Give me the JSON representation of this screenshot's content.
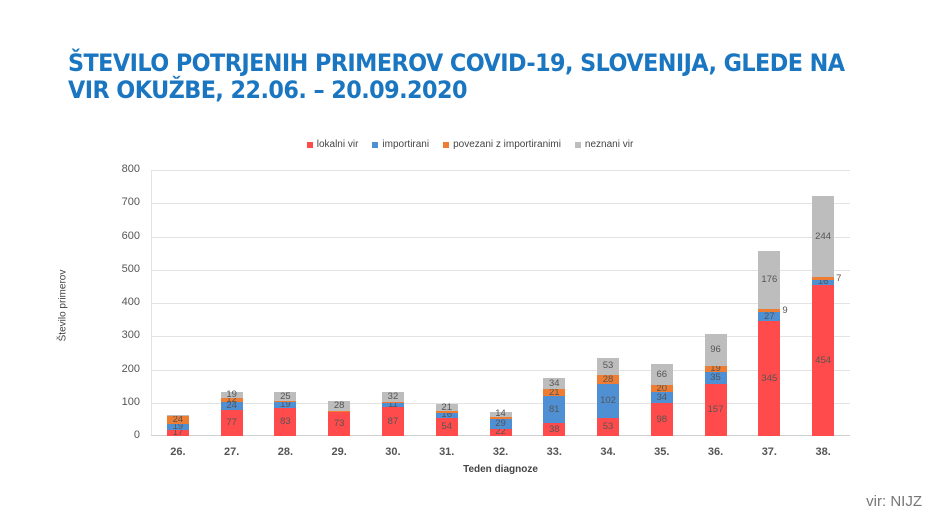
{
  "title": "ŠTEVILO POTRJENIH PRIMEROV COVID-19, SLOVENIJA, GLEDE NA VIR OKUŽBE, 22.06. – 20.09.2020",
  "source": "vir: NIJZ",
  "colors": {
    "lokalni vir": "#ff4b4b",
    "importirani": "#4f8fd4",
    "povezani z importiranimi": "#ee7c32",
    "neznani vir": "#bdbdbd"
  },
  "chart_data": {
    "type": "bar",
    "stacked": true,
    "title": "ŠTEVILO POTRJENIH PRIMEROV COVID-19, SLOVENIJA, GLEDE NA VIR OKUŽBE, 22.06. – 20.09.2020",
    "xlabel": "Teden diagnoze",
    "ylabel": "Število primerov",
    "ylim": [
      0,
      800
    ],
    "yticks": [
      0,
      100,
      200,
      300,
      400,
      500,
      600,
      700,
      800
    ],
    "grid": true,
    "legend_position": "top",
    "categories": [
      "26.",
      "27.",
      "28.",
      "29.",
      "30.",
      "31.",
      "32.",
      "33.",
      "34.",
      "35.",
      "36.",
      "37.",
      "38."
    ],
    "series": [
      {
        "name": "lokalni vir",
        "values": [
          17,
          77,
          83,
          73,
          87,
          54,
          22,
          38,
          53,
          98,
          157,
          345,
          454
        ]
      },
      {
        "name": "importirani",
        "values": [
          19,
          24,
          19,
          2,
          11,
          16,
          29,
          81,
          102,
          34,
          35,
          27,
          16
        ]
      },
      {
        "name": "povezani z importiranimi",
        "values": [
          24,
          12,
          4,
          1,
          3,
          4,
          7,
          21,
          28,
          20,
          19,
          9,
          7
        ]
      },
      {
        "name": "neznani vir",
        "values": [
          4,
          19,
          25,
          28,
          32,
          21,
          14,
          34,
          53,
          66,
          96,
          176,
          244
        ]
      }
    ],
    "labels_shown": [
      [
        true,
        true,
        true,
        true,
        true,
        true,
        true,
        true,
        true,
        true,
        true,
        true,
        true
      ],
      [
        true,
        true,
        true,
        false,
        true,
        true,
        true,
        true,
        true,
        true,
        true,
        true,
        true
      ],
      [
        true,
        true,
        false,
        false,
        false,
        false,
        false,
        true,
        true,
        true,
        true,
        true,
        true
      ],
      [
        false,
        true,
        true,
        true,
        true,
        true,
        true,
        true,
        true,
        true,
        true,
        true,
        true
      ]
    ]
  }
}
